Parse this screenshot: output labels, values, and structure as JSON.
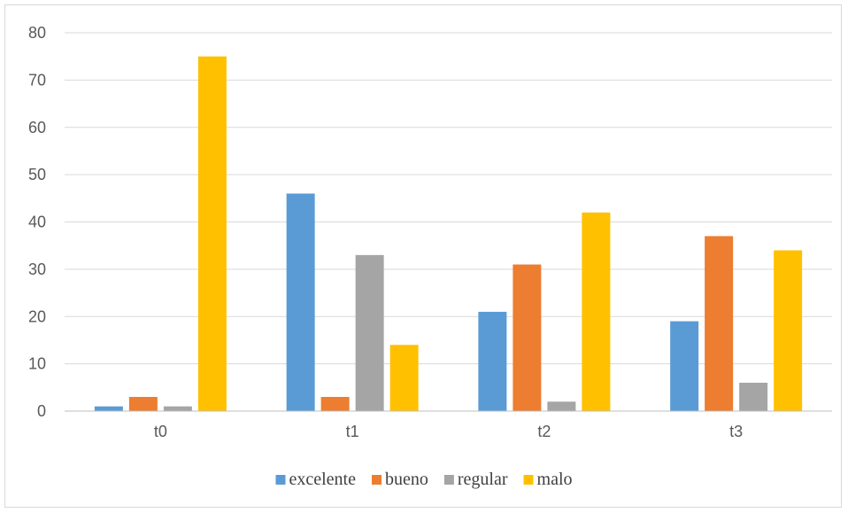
{
  "chart_data": {
    "type": "bar",
    "title": "",
    "xlabel": "",
    "ylabel": "",
    "categories": [
      "t0",
      "t1",
      "t2",
      "t3"
    ],
    "series": [
      {
        "name": "excelente",
        "color": "#5B9BD5",
        "values": [
          1,
          46,
          21,
          19
        ]
      },
      {
        "name": "bueno",
        "color": "#ED7D31",
        "values": [
          3,
          3,
          31,
          37
        ]
      },
      {
        "name": "regular",
        "color": "#A5A5A5",
        "values": [
          1,
          33,
          2,
          6
        ]
      },
      {
        "name": "malo",
        "color": "#FFC000",
        "values": [
          75,
          14,
          42,
          34
        ]
      }
    ],
    "ylim": [
      0,
      80
    ],
    "yticks": [
      0,
      10,
      20,
      30,
      40,
      50,
      60,
      70,
      80
    ],
    "grid": true,
    "legend_position": "bottom"
  }
}
